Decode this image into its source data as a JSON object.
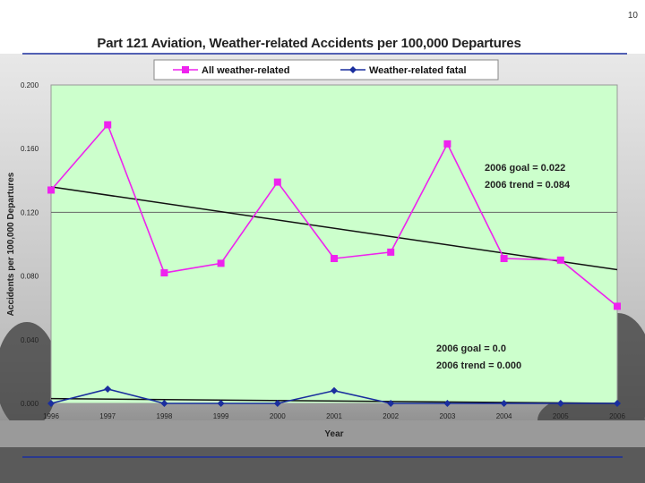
{
  "page_number": "10",
  "chart_data": {
    "type": "line",
    "title": "Part 121 Aviation, Weather-related Accidents per 100,000 Departures",
    "xlabel": "Year",
    "ylabel": "Accidents per 100,000 Departures",
    "x": [
      "1996",
      "1997",
      "1998",
      "1999",
      "2000",
      "2001",
      "2002",
      "2003",
      "2004",
      "2005",
      "2006"
    ],
    "ylim": [
      0,
      0.2
    ],
    "y_ticks": [
      "0.000",
      "0.040",
      "0.080",
      "0.120",
      "0.160",
      "0.200"
    ],
    "y_tick_values": [
      0,
      0.04,
      0.08,
      0.12,
      0.16,
      0.2
    ],
    "grid": "horizontal at 0.120",
    "legend": "top",
    "series": [
      {
        "name": "All weather-related",
        "color": "#ee22ee",
        "marker": "square",
        "values": [
          0.134,
          0.175,
          0.082,
          0.088,
          0.139,
          0.091,
          0.095,
          0.163,
          0.091,
          0.09,
          0.061
        ],
        "trend": [
          0.136,
          0.084
        ]
      },
      {
        "name": "Weather-related fatal",
        "color": "#1a2e9e",
        "marker": "diamond",
        "values": [
          0.0,
          0.009,
          0.0,
          0.0,
          0.0,
          0.008,
          0.0,
          0.0,
          0.0,
          0.0,
          0.0
        ],
        "trend": [
          0.003,
          0.0
        ]
      }
    ],
    "annotations": [
      {
        "lines": [
          "2006 goal = 0.022",
          "2006 trend = 0.084"
        ]
      },
      {
        "lines": [
          "2006 goal = 0.0",
          "2006 trend = 0.000"
        ]
      }
    ]
  }
}
